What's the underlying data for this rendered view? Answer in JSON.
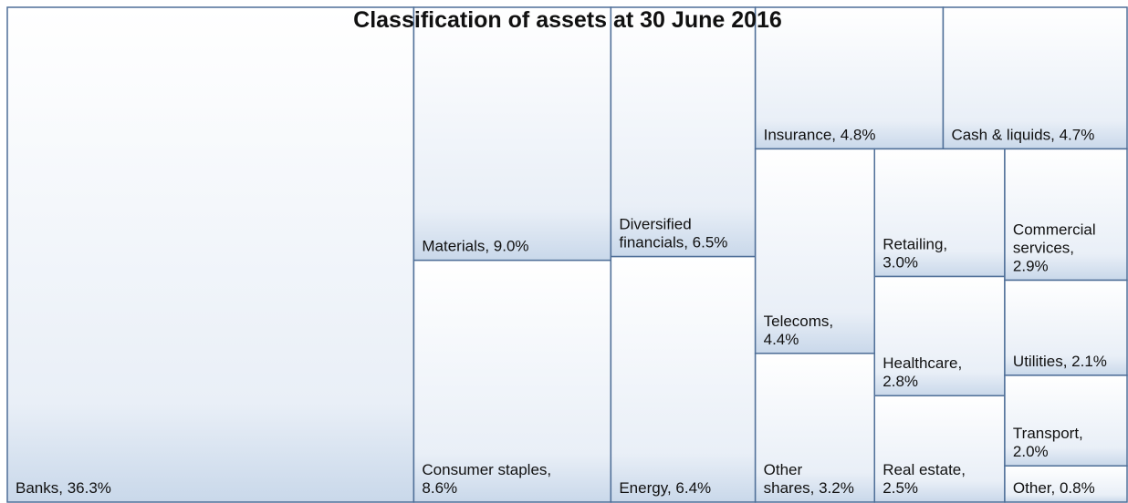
{
  "chart_data": {
    "type": "treemap",
    "title": "Classification of assets at 30 June 2016",
    "labels": [
      "Banks, 36.3%",
      "Materials, 9.0%",
      "Consumer staples, 8.6%",
      "Diversified financials, 6.5%",
      "Energy, 6.4%",
      "Insurance, 4.8%",
      "Cash & liquids, 4.7%",
      "Telecoms, 4.4%",
      "Other shares, 3.2%",
      "Retailing, 3.0%",
      "Healthcare, 2.8%",
      "Real estate, 2.5%",
      "Commercial services, 2.9%",
      "Utilities, 2.1%",
      "Transport, 2.0%",
      "Other, 0.8%"
    ],
    "values": [
      36.3,
      9.0,
      8.6,
      6.5,
      6.4,
      4.8,
      4.7,
      4.4,
      3.2,
      3.0,
      2.8,
      2.5,
      2.9,
      2.1,
      2.0,
      0.8
    ],
    "color": "#c9d8ea",
    "edge_color": "#4f6f98"
  }
}
